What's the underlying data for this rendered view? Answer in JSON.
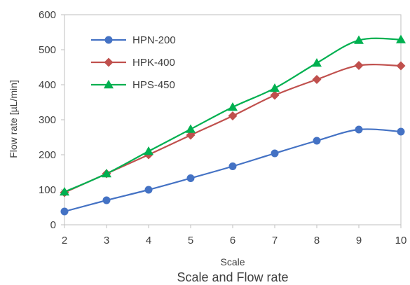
{
  "chart_data": {
    "type": "line",
    "title": "",
    "caption": "Scale and Flow rate",
    "xlabel": "Scale",
    "ylabel": "Flow rate [µL/min]",
    "x": [
      2,
      3,
      4,
      5,
      6,
      7,
      8,
      9,
      10
    ],
    "xlim": [
      2,
      10
    ],
    "ylim": [
      0,
      600
    ],
    "xticks": [
      "2",
      "3",
      "4",
      "5",
      "6",
      "7",
      "8",
      "9",
      "10"
    ],
    "yticks": [
      "0",
      "100",
      "200",
      "300",
      "400",
      "500",
      "600"
    ],
    "grid": false,
    "legend_position": "top-left",
    "smooth": true,
    "series": [
      {
        "name": "HPN-200",
        "marker": "circle",
        "color": "#4472C4",
        "values": [
          38,
          70,
          100,
          133,
          167,
          204,
          240,
          272,
          266
        ]
      },
      {
        "name": "HPK-400",
        "marker": "diamond",
        "color": "#C0504D",
        "values": [
          92,
          146,
          200,
          256,
          311,
          370,
          415,
          455,
          454
        ]
      },
      {
        "name": "HPS-450",
        "marker": "triangle",
        "color": "#00B050",
        "values": [
          94,
          146,
          210,
          273,
          336,
          390,
          462,
          527,
          529
        ]
      }
    ]
  }
}
